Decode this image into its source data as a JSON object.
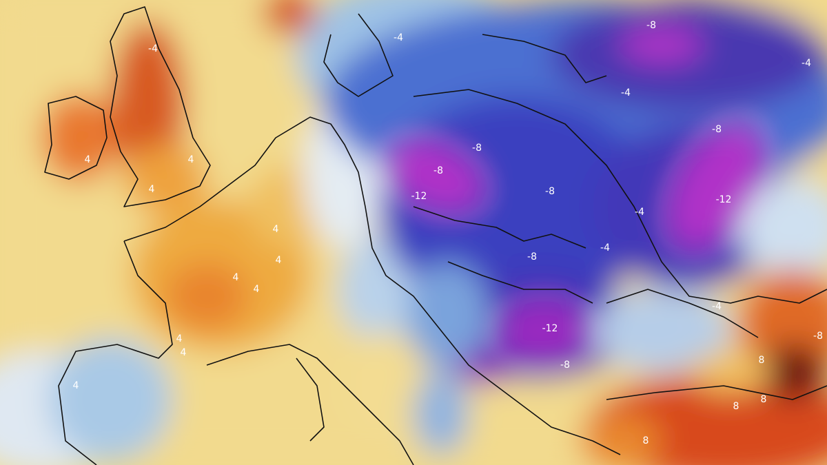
{
  "contour_labels": [
    "-8",
    "-4",
    "-4",
    "-4",
    "-8",
    "-8",
    "-8",
    "-12",
    "-8",
    "-4",
    "-12",
    "-4",
    "-8",
    "-12",
    "-8",
    "-4",
    "-8",
    "8",
    "8",
    "8",
    "8",
    "4",
    "4",
    "4",
    "4",
    "4",
    "4",
    "4",
    "4",
    "4",
    "-4",
    "4"
  ]
}
